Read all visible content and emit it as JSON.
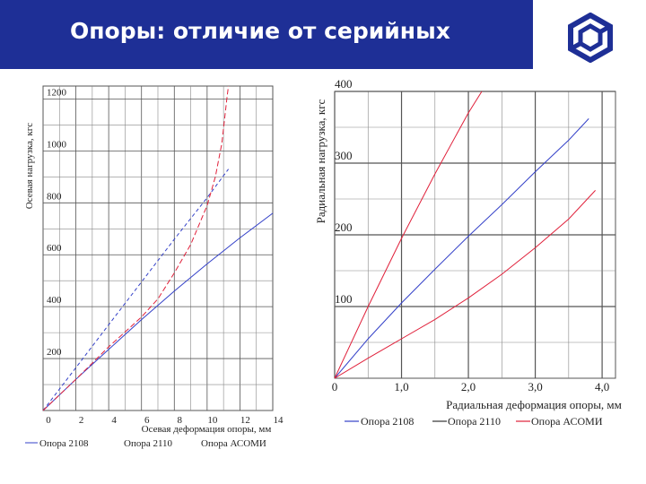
{
  "header": {
    "title": "Опоры: отличие от серийных"
  },
  "logo": {
    "icon": "hexagon-emblem-icon",
    "color": "#1e2f96"
  },
  "colors": {
    "header_bg": "#1e2f96",
    "blue": "#3340c8",
    "red": "#e0203a",
    "grid": "#666666"
  },
  "chart_data": [
    {
      "type": "line",
      "xlabel": "Осевая деформация опоры, мм",
      "ylabel": "Осевая нагрузка, кгс",
      "xlim": [
        0,
        14
      ],
      "ylim": [
        0,
        1250
      ],
      "x_ticks": [
        "0",
        "2",
        "4",
        "6",
        "8",
        "10",
        "12",
        "14"
      ],
      "y_ticks": [
        "200",
        "400",
        "600",
        "800",
        "1000",
        "1200"
      ],
      "grid": true,
      "legend": [
        "Опора 2108",
        "Опора 2110",
        "Опора АСОМИ"
      ],
      "series": [
        {
          "name": "Опора 2108",
          "color": "#3340c8",
          "dash": "none",
          "points": [
            [
              0,
              0
            ],
            [
              2,
              120
            ],
            [
              4,
              235
            ],
            [
              6,
              350
            ],
            [
              8,
              460
            ],
            [
              10,
              565
            ],
            [
              12,
              665
            ],
            [
              14,
              760
            ]
          ]
        },
        {
          "name": "Опора 2110",
          "color": "#3340c8",
          "dash": "4,3",
          "points": [
            [
              0,
              0
            ],
            [
              2,
              165
            ],
            [
              4,
              330
            ],
            [
              6,
              495
            ],
            [
              8,
              660
            ],
            [
              10,
              820
            ],
            [
              11.3,
              930
            ]
          ]
        },
        {
          "name": "Опора АСОМИ",
          "color": "#e0203a",
          "dash": "6,3",
          "points": [
            [
              0,
              0
            ],
            [
              2,
              120
            ],
            [
              4,
              245
            ],
            [
              6,
              360
            ],
            [
              7,
              430
            ],
            [
              8,
              530
            ],
            [
              9,
              640
            ],
            [
              10,
              790
            ],
            [
              10.5,
              900
            ],
            [
              10.9,
              1030
            ],
            [
              11.2,
              1200
            ],
            [
              11.3,
              1280
            ]
          ]
        }
      ]
    },
    {
      "type": "line",
      "xlabel": "Радиальная деформация опоры, мм",
      "ylabel": "Радиальная нагрузка, кгс",
      "xlim": [
        0,
        4.2
      ],
      "ylim": [
        0,
        400
      ],
      "x_ticks": [
        "0",
        "1,0",
        "2,0",
        "3,0",
        "4,0"
      ],
      "y_ticks": [
        "100",
        "200",
        "300",
        "400"
      ],
      "grid": true,
      "legend": [
        "Опора 2108",
        "Опора 2110",
        "Опора АСОМИ"
      ],
      "series": [
        {
          "name": "Опора 2108",
          "color": "#3340c8",
          "dash": "none",
          "points": [
            [
              0,
              0
            ],
            [
              0.5,
              55
            ],
            [
              1.0,
              105
            ],
            [
              1.5,
              152
            ],
            [
              2.0,
              198
            ],
            [
              2.5,
              242
            ],
            [
              3.0,
              288
            ],
            [
              3.5,
              332
            ],
            [
              3.8,
              362
            ]
          ]
        },
        {
          "name": "Опора 2110",
          "color": "#e0203a",
          "dash": "none",
          "points": [
            [
              0,
              0
            ],
            [
              0.5,
              100
            ],
            [
              1.0,
              195
            ],
            [
              1.5,
              285
            ],
            [
              2.0,
              370
            ],
            [
              2.2,
              405
            ]
          ]
        },
        {
          "name": "Опора АСОМИ",
          "color": "#e0203a",
          "dash": "none",
          "points": [
            [
              0,
              0
            ],
            [
              0.5,
              28
            ],
            [
              1.0,
              55
            ],
            [
              1.5,
              82
            ],
            [
              2.0,
              112
            ],
            [
              2.5,
              145
            ],
            [
              3.0,
              182
            ],
            [
              3.5,
              222
            ],
            [
              3.9,
              262
            ]
          ]
        }
      ]
    }
  ]
}
